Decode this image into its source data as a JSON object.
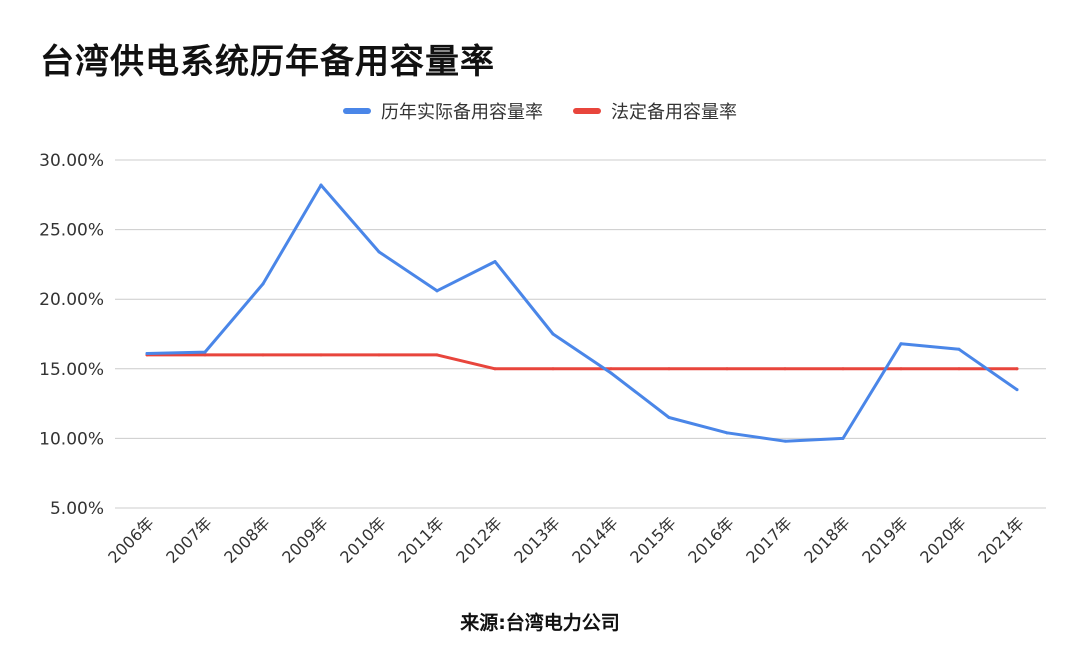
{
  "title": "台湾供电系统历年备用容量率",
  "source": "来源:台湾电力公司",
  "colors": {
    "actual": "#4a86e8",
    "legal": "#e8453c",
    "grid": "#cccccc",
    "text": "#333333"
  },
  "chart_data": {
    "type": "line",
    "categories": [
      "2006年",
      "2007年",
      "2008年",
      "2009年",
      "2010年",
      "2011年",
      "2012年",
      "2013年",
      "2014年",
      "2015年",
      "2016年",
      "2017年",
      "2018年",
      "2019年",
      "2020年",
      "2021年"
    ],
    "series": [
      {
        "name": "历年实际备用容量率",
        "color": "#4a86e8",
        "values": [
          16.1,
          16.2,
          21.1,
          28.2,
          23.4,
          20.6,
          22.7,
          17.5,
          14.7,
          11.5,
          10.4,
          9.8,
          10.0,
          16.8,
          16.4,
          13.5
        ]
      },
      {
        "name": "法定备用容量率",
        "color": "#e8453c",
        "values": [
          16,
          16,
          16,
          16,
          16,
          16,
          15,
          15,
          15,
          15,
          15,
          15,
          15,
          15,
          15,
          15
        ]
      }
    ],
    "y_ticks": [
      "5.00%",
      "10.00%",
      "15.00%",
      "20.00%",
      "25.00%",
      "30.00%"
    ],
    "ylim": [
      5,
      30
    ],
    "grid": true,
    "legend_position": "top-center"
  }
}
